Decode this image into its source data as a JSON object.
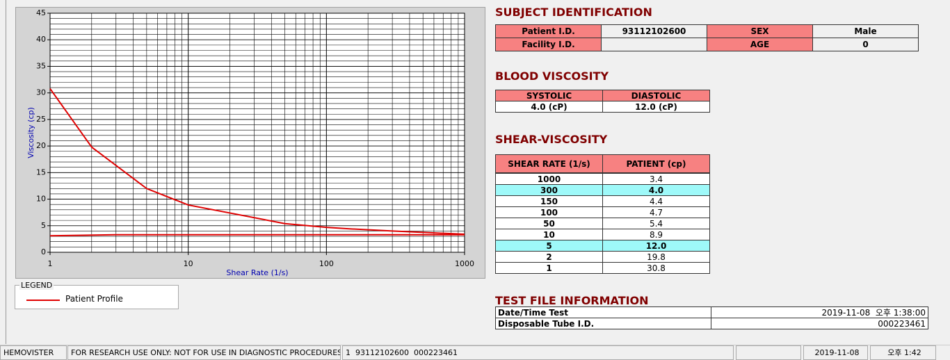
{
  "chart_data": {
    "type": "line",
    "xlabel": "Shear Rate (1/s)",
    "ylabel": "Viscosity (cp)",
    "log_x": true,
    "x": [
      1,
      2,
      5,
      10,
      50,
      100,
      150,
      300,
      1000
    ],
    "series": [
      {
        "name": "Patient Profile",
        "color": "#e00000",
        "values": [
          30.8,
          19.8,
          12.0,
          8.9,
          5.4,
          4.7,
          4.4,
          4.0,
          3.4
        ]
      },
      {
        "color": "#e00000",
        "x": [
          1,
          3,
          1000
        ],
        "values": [
          3.1,
          3.3,
          3.3
        ]
      }
    ],
    "xlim": [
      1,
      1000
    ],
    "xticks": [
      1,
      10,
      100,
      1000
    ],
    "ylim": [
      0,
      45
    ],
    "yticks": [
      0,
      5,
      10,
      15,
      20,
      25,
      30,
      35,
      40,
      45
    ],
    "grid": true,
    "minor_grid": true
  },
  "legend": {
    "title": "LEGEND"
  },
  "subject": {
    "title": "SUBJECT IDENTIFICATION",
    "rows": [
      [
        "Patient I.D.",
        "93112102600",
        "SEX",
        "Male"
      ],
      [
        "Facility I.D.",
        null,
        "AGE",
        "0"
      ]
    ]
  },
  "blood": {
    "title": "BLOOD VISCOSITY",
    "header": [
      "SYSTOLIC",
      "DIASTOLIC"
    ],
    "row": [
      "4.0 (cP)",
      "12.0 (cP)"
    ]
  },
  "shear": {
    "title": "SHEAR-VISCOSITY",
    "header": [
      "SHEAR RATE (1/s)",
      "PATIENT (cp)"
    ],
    "rows": [
      [
        "1000",
        "3.4"
      ],
      [
        "300",
        "4.0"
      ],
      [
        "150",
        "4.4"
      ],
      [
        "100",
        "4.7"
      ],
      [
        "50",
        "5.4"
      ],
      [
        "10",
        "8.9"
      ],
      [
        "5",
        "12.0"
      ],
      [
        "2",
        "19.8"
      ],
      [
        "1",
        "30.8"
      ]
    ],
    "highlight": [
      1,
      6
    ]
  },
  "test": {
    "title": "TEST FILE INFORMATION",
    "rows": [
      [
        "Date/Time Test",
        "2019-11-08  오후 1:38:00"
      ],
      [
        "Disposable Tube I.D.",
        "000223461"
      ]
    ]
  },
  "status": [
    "HEMOVISTER",
    "FOR RESEARCH USE ONLY: NOT FOR USE IN DIAGNOSTIC PROCEDURES",
    "1  93112102600  000223461",
    "2019-11-08",
    "오후 1:42"
  ]
}
